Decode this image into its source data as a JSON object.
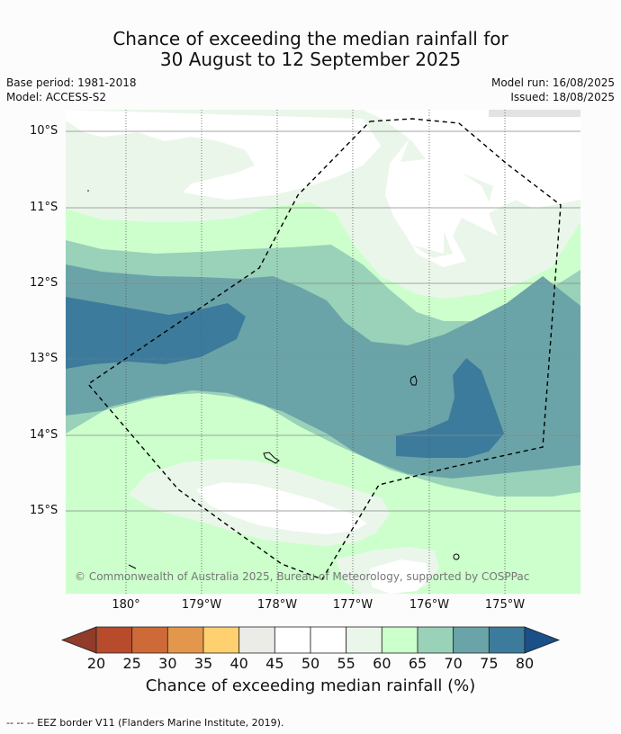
{
  "title": {
    "line1": "Chance of exceeding the median rainfall for",
    "line2": "30 August to 12 September 2025"
  },
  "meta": {
    "base_period": "Base period: 1981-2018",
    "model": "Model: ACCESS-S2",
    "model_run": "Model run: 16/08/2025",
    "issued": "Issued: 18/08/2025"
  },
  "map": {
    "lat_labels": [
      "10°S",
      "11°S",
      "12°S",
      "13°S",
      "14°S",
      "15°S"
    ],
    "lon_labels": [
      "180°",
      "179°W",
      "178°W",
      "177°W",
      "176°W",
      "175°W"
    ],
    "copyright": "© Commonwealth of Australia 2025, Bureau of Meteorology, supported by COSPPac",
    "colors": {
      "c30": "#ffffff",
      "c55": "#ebf6ea",
      "c60": "#ccffcc",
      "c65": "#99d1b9",
      "c70": "#6aa4a8",
      "c75": "#3d7b9c"
    }
  },
  "colorbar": {
    "ticks": [
      "20",
      "25",
      "30",
      "35",
      "40",
      "45",
      "50",
      "55",
      "60",
      "65",
      "70",
      "75",
      "80"
    ],
    "colors": [
      "#b84b2b",
      "#cd6a38",
      "#e3974c",
      "#ffd070",
      "#ebebe8",
      "#ffffff",
      "#ffffff",
      "#ebf6ea",
      "#ccffcc",
      "#99d1b9",
      "#6aa4a8",
      "#3d7b9c"
    ],
    "under_color": "#913b2b",
    "over_color": "#1a4f88",
    "label": "Chance of exceeding median rainfall (%)"
  },
  "footer": "--  --  -- EEZ border V11 (Flanders Marine Institute, 2019)."
}
